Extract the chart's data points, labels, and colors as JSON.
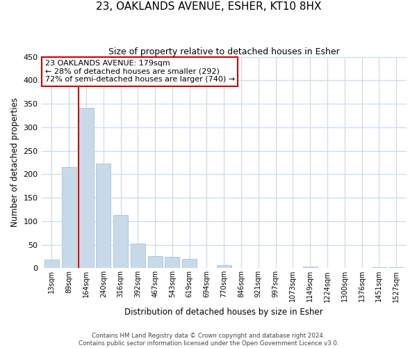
{
  "title": "23, OAKLANDS AVENUE, ESHER, KT10 8HX",
  "subtitle": "Size of property relative to detached houses in Esher",
  "xlabel": "Distribution of detached houses by size in Esher",
  "ylabel": "Number of detached properties",
  "bar_labels": [
    "13sqm",
    "89sqm",
    "164sqm",
    "240sqm",
    "316sqm",
    "392sqm",
    "467sqm",
    "543sqm",
    "619sqm",
    "694sqm",
    "770sqm",
    "846sqm",
    "921sqm",
    "997sqm",
    "1073sqm",
    "1149sqm",
    "1224sqm",
    "1300sqm",
    "1376sqm",
    "1451sqm",
    "1527sqm"
  ],
  "bar_values": [
    18,
    215,
    342,
    222,
    113,
    53,
    25,
    24,
    20,
    0,
    7,
    0,
    0,
    0,
    0,
    3,
    0,
    0,
    0,
    2,
    2
  ],
  "bar_color": "#c8daea",
  "bar_edge_color": "#aec6d8",
  "vline_x_index": 2,
  "vline_color": "#cc0000",
  "ylim": [
    0,
    450
  ],
  "yticks": [
    0,
    50,
    100,
    150,
    200,
    250,
    300,
    350,
    400,
    450
  ],
  "annotation_title": "23 OAKLANDS AVENUE: 179sqm",
  "annotation_line1": "← 28% of detached houses are smaller (292)",
  "annotation_line2": "72% of semi-detached houses are larger (740) →",
  "annotation_box_color": "#ffffff",
  "annotation_box_edge": "#cc0000",
  "footer_line1": "Contains HM Land Registry data © Crown copyright and database right 2024.",
  "footer_line2": "Contains public sector information licensed under the Open Government Licence v3.0.",
  "background_color": "#ffffff",
  "grid_color": "#c8d8e8"
}
